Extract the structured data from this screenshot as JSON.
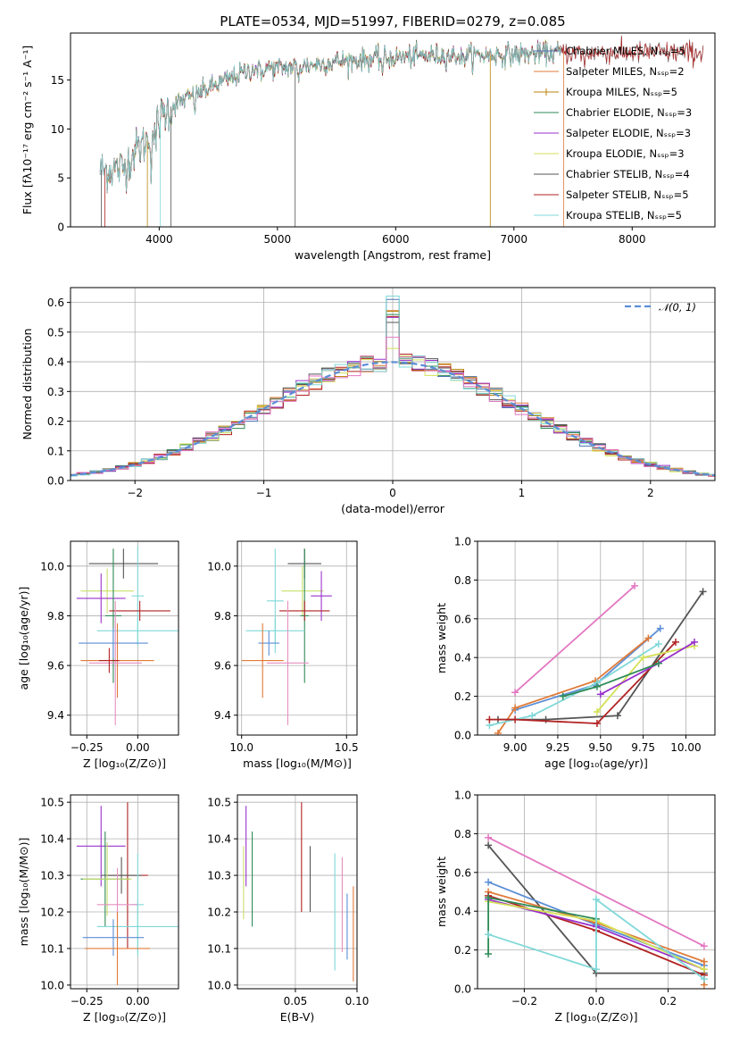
{
  "figure": {
    "title": "PLATE=0534, MJD=51997, FIBERID=0279, z=0.085"
  },
  "chart_data": [
    {
      "id": "spectrum",
      "type": "line",
      "xlabel": "wavelength [Angstrom, rest frame]",
      "ylabel": "Flux [fλ10⁻¹⁷ erg cm⁻² s⁻¹ A⁻¹]",
      "xlim": [
        3250,
        8700
      ],
      "ylim": [
        0,
        19.8
      ],
      "xticks": [
        4000,
        5000,
        6000,
        7000,
        8000
      ],
      "yticks": [
        0,
        5,
        10,
        15
      ],
      "grid": false,
      "legend_position": "upper-right",
      "continuum_points": [
        [
          3500,
          5.8
        ],
        [
          3700,
          6.0
        ],
        [
          3800,
          7.8
        ],
        [
          3900,
          8.8
        ],
        [
          4000,
          11.0
        ],
        [
          4100,
          12.3
        ],
        [
          4300,
          13.5
        ],
        [
          4500,
          14.6
        ],
        [
          4800,
          16.2
        ],
        [
          5000,
          16.2
        ],
        [
          5200,
          16.4
        ],
        [
          5500,
          16.9
        ],
        [
          6000,
          17.3
        ],
        [
          6300,
          17.5
        ],
        [
          6600,
          17.5
        ],
        [
          7000,
          17.6
        ],
        [
          7400,
          17.8
        ]
      ],
      "series": [
        {
          "name": "Chabrier MILES, N_SSP=5",
          "color": "#4c72b0",
          "x_range": [
            3550,
            7400
          ]
        },
        {
          "name": "Salpeter MILES, N_SSP=2",
          "color": "#e07b39",
          "x_range": [
            3550,
            7400
          ]
        },
        {
          "name": "Kroupa MILES, N_SSP=5",
          "color": "#b8860b",
          "x_range": [
            3550,
            7400
          ]
        },
        {
          "name": "Chabrier ELODIE, N_SSP=3",
          "color": "#2e8b57",
          "x_range": [
            3550,
            7400
          ]
        },
        {
          "name": "Salpeter ELODIE, N_SSP=3",
          "color": "#9932cc",
          "x_range": [
            3550,
            7400
          ]
        },
        {
          "name": "Kroupa ELODIE, N_SSP=3",
          "color": "#d4e157",
          "x_range": [
            3550,
            7400
          ]
        },
        {
          "name": "Chabrier STELIB, N_SSP=4",
          "color": "#555555",
          "x_range": [
            3500,
            8600
          ]
        },
        {
          "name": "Salpeter STELIB, N_SSP=5",
          "color": "#b22222",
          "x_range": [
            3500,
            8600
          ]
        },
        {
          "name": "Kroupa STELIB, N_SSP=5",
          "color": "#80d8d8",
          "x_range": [
            3500,
            7400
          ]
        }
      ]
    },
    {
      "id": "residuals",
      "type": "line",
      "xlabel": "(data-model)/error",
      "ylabel": "Normed distribution",
      "xlim": [
        -2.5,
        2.5
      ],
      "ylim": [
        0,
        0.65
      ],
      "xticks": [
        -2,
        -1,
        0,
        1,
        2
      ],
      "yticks": [
        0.0,
        0.1,
        0.2,
        0.3,
        0.4,
        0.5,
        0.6
      ],
      "grid": true,
      "legend": [
        {
          "name": "𝒩(0, 1)",
          "color": "#5b8ed6",
          "style": "dashed"
        }
      ],
      "bin_width": 0.1,
      "histogram_colors": [
        "#4c72b0",
        "#e07b39",
        "#b8860b",
        "#2e8b57",
        "#9932cc",
        "#d4e157",
        "#555555",
        "#b22222",
        "#80d8d8",
        "#e377c2"
      ]
    },
    {
      "id": "age_vs_Z",
      "type": "scatter",
      "xlabel": "Z [log₁₀(Z/Z⊙)]",
      "ylabel": "age  [log₁₀(age/yr)]",
      "xlim": [
        -0.33,
        0.2
      ],
      "ylim": [
        9.32,
        10.1
      ],
      "xticks": [
        -0.25,
        0.0
      ],
      "xticklabels": [
        "−0.25",
        "0.00"
      ],
      "yticks": [
        9.4,
        9.6,
        9.8,
        10.0
      ],
      "grid": true,
      "points": [
        {
          "x": -0.07,
          "y": 10.01,
          "xerr": 0.17,
          "yerr": 0.06,
          "color": "#555555"
        },
        {
          "x": -0.15,
          "y": 9.9,
          "xerr": 0.13,
          "yerr": 0.09,
          "color": "#c8e06a"
        },
        {
          "x": -0.18,
          "y": 9.87,
          "xerr": 0.12,
          "yerr": 0.1,
          "color": "#9932cc"
        },
        {
          "x": 0.0,
          "y": 9.88,
          "xerr": 0.03,
          "yerr": 0.2,
          "color": "#80d8d8"
        },
        {
          "x": -0.12,
          "y": 9.8,
          "xerr": 0.04,
          "yerr": 0.27,
          "color": "#2e8b57"
        },
        {
          "x": 0.01,
          "y": 9.82,
          "xerr": 0.15,
          "yerr": 0.04,
          "color": "#b22222"
        },
        {
          "x": 0.0,
          "y": 9.74,
          "xerr": 0.2,
          "yerr": 0.05,
          "color": "#80d8d8"
        },
        {
          "x": -0.12,
          "y": 9.69,
          "xerr": 0.17,
          "yerr": 0.06,
          "color": "#5b8ed6"
        },
        {
          "x": -0.1,
          "y": 9.62,
          "xerr": 0.18,
          "yerr": 0.15,
          "color": "#e07b39"
        },
        {
          "x": -0.11,
          "y": 9.61,
          "xerr": 0.13,
          "yerr": 0.25,
          "color": "#e58fc0"
        },
        {
          "x": -0.14,
          "y": 9.62,
          "xerr": 0.05,
          "yerr": 0.05,
          "color": "#b22222"
        }
      ]
    },
    {
      "id": "age_vs_mass",
      "type": "scatter",
      "xlabel": "mass [log₁₀(M/M⊙)]",
      "ylabel": "",
      "xlim": [
        9.98,
        10.55
      ],
      "ylim": [
        9.32,
        10.1
      ],
      "xticks": [
        10.0,
        10.5
      ],
      "xticklabels": [
        "10.0",
        "10.5"
      ],
      "yticks": [
        9.4,
        9.6,
        9.8,
        10.0
      ],
      "grid": true,
      "points": [
        {
          "x": 10.3,
          "y": 10.01,
          "xerr": 0.08,
          "yerr": 0.06,
          "color": "#555555"
        },
        {
          "x": 10.29,
          "y": 9.9,
          "xerr": 0.1,
          "yerr": 0.1,
          "color": "#c8e06a"
        },
        {
          "x": 10.38,
          "y": 9.88,
          "xerr": 0.05,
          "yerr": 0.1,
          "color": "#9932cc"
        },
        {
          "x": 10.16,
          "y": 9.86,
          "xerr": 0.04,
          "yerr": 0.21,
          "color": "#80d8d8"
        },
        {
          "x": 10.3,
          "y": 9.8,
          "xerr": 0.02,
          "yerr": 0.27,
          "color": "#2e8b57"
        },
        {
          "x": 10.3,
          "y": 9.82,
          "xerr": 0.12,
          "yerr": 0.04,
          "color": "#b22222"
        },
        {
          "x": 10.16,
          "y": 9.74,
          "xerr": 0.14,
          "yerr": 0.05,
          "color": "#80d8d8"
        },
        {
          "x": 10.13,
          "y": 9.69,
          "xerr": 0.05,
          "yerr": 0.05,
          "color": "#5b8ed6"
        },
        {
          "x": 10.1,
          "y": 9.62,
          "xerr": 0.1,
          "yerr": 0.15,
          "color": "#e07b39"
        },
        {
          "x": 10.22,
          "y": 9.61,
          "xerr": 0.1,
          "yerr": 0.25,
          "color": "#e58fc0"
        }
      ]
    },
    {
      "id": "mass_weight_vs_age",
      "type": "line",
      "xlabel": "age  [log₁₀(age/yr)]",
      "ylabel": "mass weight",
      "xlim": [
        8.78,
        10.17
      ],
      "ylim": [
        0.0,
        1.0
      ],
      "xticks": [
        9.0,
        9.25,
        9.5,
        9.75,
        10.0
      ],
      "xticklabels": [
        "9.00",
        "9.25",
        "9.50",
        "9.75",
        "10.00"
      ],
      "yticks": [
        0.0,
        0.2,
        0.4,
        0.6,
        0.8,
        1.0
      ],
      "grid": true,
      "series": [
        {
          "color": "#e377c2",
          "points": [
            [
              9.0,
              0.22
            ],
            [
              9.7,
              0.77
            ]
          ]
        },
        {
          "color": "#555555",
          "points": [
            [
              8.9,
              0.08
            ],
            [
              9.18,
              0.08
            ],
            [
              9.6,
              0.1
            ],
            [
              10.1,
              0.74
            ]
          ]
        },
        {
          "color": "#5b8ed6",
          "points": [
            [
              9.0,
              0.13
            ],
            [
              9.47,
              0.26
            ],
            [
              9.85,
              0.55
            ]
          ]
        },
        {
          "color": "#e07b39",
          "points": [
            [
              8.9,
              0.01
            ],
            [
              9.0,
              0.14
            ],
            [
              9.47,
              0.28
            ],
            [
              9.78,
              0.5
            ]
          ]
        },
        {
          "color": "#80d8d8",
          "points": [
            [
              8.85,
              0.05
            ],
            [
              9.1,
              0.1
            ],
            [
              9.48,
              0.27
            ],
            [
              9.84,
              0.47
            ]
          ]
        },
        {
          "color": "#b22222",
          "points": [
            [
              8.85,
              0.08
            ],
            [
              9.0,
              0.08
            ],
            [
              9.48,
              0.06
            ],
            [
              9.94,
              0.48
            ]
          ]
        },
        {
          "color": "#d4e157",
          "points": [
            [
              9.48,
              0.12
            ],
            [
              9.75,
              0.4
            ],
            [
              10.05,
              0.46
            ]
          ]
        },
        {
          "color": "#9932cc",
          "points": [
            [
              9.5,
              0.21
            ],
            [
              9.84,
              0.37
            ],
            [
              10.05,
              0.48
            ]
          ]
        },
        {
          "color": "#2e8b57",
          "points": [
            [
              9.28,
              0.2
            ],
            [
              9.48,
              0.25
            ],
            [
              9.84,
              0.37
            ]
          ]
        }
      ]
    },
    {
      "id": "mass_vs_Z",
      "type": "scatter",
      "xlabel": "Z [log₁₀(Z/Z⊙)]",
      "ylabel": "mass [log₁₀(M/M⊙)]",
      "xlim": [
        -0.33,
        0.2
      ],
      "ylim": [
        9.99,
        10.52
      ],
      "xticks": [
        -0.25,
        0.0
      ],
      "xticklabels": [
        "−0.25",
        "0.00"
      ],
      "yticks": [
        10.0,
        10.1,
        10.2,
        10.3,
        10.4,
        10.5
      ],
      "grid": true,
      "points": [
        {
          "x": -0.18,
          "y": 10.38,
          "xerr": 0.12,
          "yerr": 0.11,
          "color": "#9932cc"
        },
        {
          "x": -0.16,
          "y": 10.29,
          "xerr": 0.12,
          "yerr": 0.13,
          "color": "#2e8b57"
        },
        {
          "x": -0.05,
          "y": 10.3,
          "xerr": 0.1,
          "yerr": 0.2,
          "color": "#b22222"
        },
        {
          "x": -0.08,
          "y": 10.3,
          "xerr": 0.1,
          "yerr": 0.05,
          "color": "#555555"
        },
        {
          "x": -0.15,
          "y": 10.29,
          "xerr": 0.12,
          "yerr": 0.1,
          "color": "#c8e06a"
        },
        {
          "x": 0.0,
          "y": 10.22,
          "xerr": 0.03,
          "yerr": 0.14,
          "color": "#80d8d8"
        },
        {
          "x": -0.1,
          "y": 10.22,
          "xerr": 0.1,
          "yerr": 0.1,
          "color": "#e58fc0"
        },
        {
          "x": 0.0,
          "y": 10.16,
          "xerr": 0.2,
          "yerr": 0.07,
          "color": "#80d8d8"
        },
        {
          "x": -0.12,
          "y": 10.13,
          "xerr": 0.15,
          "yerr": 0.05,
          "color": "#5b8ed6"
        },
        {
          "x": -0.1,
          "y": 10.1,
          "xerr": 0.16,
          "yerr": 0.1,
          "color": "#e07b39"
        }
      ]
    },
    {
      "id": "mass_vs_ebv",
      "type": "scatter",
      "xlabel": "E(B-V)",
      "ylabel": "",
      "xlim": [
        0.003,
        0.1
      ],
      "ylim": [
        9.99,
        10.52
      ],
      "xticks": [
        0.05,
        0.1
      ],
      "xticklabels": [
        "0.05",
        "0.10"
      ],
      "yticks": [
        10.0,
        10.1,
        10.2,
        10.3,
        10.4,
        10.5
      ],
      "grid": true,
      "points": [
        {
          "x": 0.01,
          "y": 10.38,
          "xerr": 0,
          "yerr": 0.11,
          "color": "#9932cc"
        },
        {
          "x": 0.008,
          "y": 10.28,
          "xerr": 0,
          "yerr": 0.1,
          "color": "#c8e06a"
        },
        {
          "x": 0.015,
          "y": 10.29,
          "xerr": 0,
          "yerr": 0.13,
          "color": "#2e8b57"
        },
        {
          "x": 0.055,
          "y": 10.35,
          "xerr": 0,
          "yerr": 0.15,
          "color": "#b22222"
        },
        {
          "x": 0.062,
          "y": 10.29,
          "xerr": 0,
          "yerr": 0.09,
          "color": "#555555"
        },
        {
          "x": 0.082,
          "y": 10.2,
          "xerr": 0,
          "yerr": 0.16,
          "color": "#80d8d8"
        },
        {
          "x": 0.088,
          "y": 10.22,
          "xerr": 0,
          "yerr": 0.13,
          "color": "#e58fc0"
        },
        {
          "x": 0.092,
          "y": 10.16,
          "xerr": 0,
          "yerr": 0.09,
          "color": "#5b8ed6"
        },
        {
          "x": 0.097,
          "y": 10.14,
          "xerr": 0,
          "yerr": 0.13,
          "color": "#e07b39"
        }
      ]
    },
    {
      "id": "mass_weight_vs_Z",
      "type": "line",
      "xlabel": "Z [log₁₀(Z/Z⊙)]",
      "ylabel": "mass weight",
      "xlim": [
        -0.33,
        0.33
      ],
      "ylim": [
        0.0,
        1.0
      ],
      "xticks": [
        -0.2,
        0.0,
        0.2
      ],
      "xticklabels": [
        "−0.2",
        "0.0",
        "0.2"
      ],
      "yticks": [
        0.0,
        0.2,
        0.4,
        0.6,
        0.8,
        1.0
      ],
      "grid": true,
      "series": [
        {
          "color": "#e377c2",
          "points": [
            [
              -0.3,
              0.78
            ],
            [
              0.3,
              0.22
            ]
          ]
        },
        {
          "color": "#555555",
          "points": [
            [
              -0.3,
              0.74
            ],
            [
              0.0,
              0.08
            ],
            [
              0.3,
              0.08
            ]
          ]
        },
        {
          "color": "#5b8ed6",
          "points": [
            [
              -0.3,
              0.55
            ],
            [
              0.0,
              0.33
            ],
            [
              0.3,
              0.12
            ]
          ]
        },
        {
          "color": "#e07b39",
          "points": [
            [
              -0.3,
              0.5
            ],
            [
              0.0,
              0.34
            ],
            [
              0.3,
              0.14
            ],
            [
              0.3,
              0.02
            ]
          ]
        },
        {
          "color": "#b22222",
          "points": [
            [
              -0.3,
              0.48
            ],
            [
              0.0,
              0.3
            ],
            [
              0.3,
              0.07
            ]
          ]
        },
        {
          "color": "#9932cc",
          "points": [
            [
              -0.3,
              0.46
            ],
            [
              0.0,
              0.32
            ],
            [
              0.3,
              0.1
            ]
          ]
        },
        {
          "color": "#d4e157",
          "points": [
            [
              -0.3,
              0.45
            ],
            [
              0.0,
              0.35
            ],
            [
              0.3,
              0.1
            ]
          ]
        },
        {
          "color": "#2e8b57",
          "points": [
            [
              -0.3,
              0.18
            ],
            [
              -0.3,
              0.47
            ],
            [
              0.0,
              0.36
            ]
          ]
        },
        {
          "color": "#80d8d8",
          "points": [
            [
              -0.3,
              0.28
            ],
            [
              0.0,
              0.1
            ],
            [
              0.0,
              0.46
            ],
            [
              0.3,
              0.05
            ]
          ]
        }
      ]
    }
  ]
}
